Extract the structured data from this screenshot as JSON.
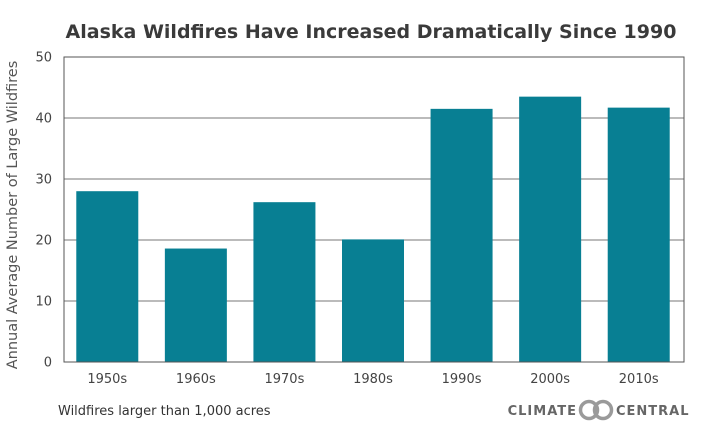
{
  "chart_data": {
    "type": "bar",
    "title": "Alaska Wildfires Have Increased Dramatically Since 1990",
    "ylabel": "Annual Average Number of Large Wildfires",
    "xlabel": "",
    "categories": [
      "1950s",
      "1960s",
      "1970s",
      "1980s",
      "1990s",
      "2000s",
      "2010s"
    ],
    "values": [
      28,
      18.6,
      26.2,
      20.1,
      41.5,
      43.5,
      41.7
    ],
    "ylim": [
      0,
      50
    ],
    "yticks": [
      "0",
      "10",
      "20",
      "30",
      "40",
      "50"
    ],
    "grid": true,
    "bar_color": "#087f93"
  },
  "footnote": "Wildfires larger than 1,000 acres",
  "brand": {
    "left": "CLIMATE",
    "right": "CENTRAL",
    "logo_color": "#9a9a9a"
  }
}
